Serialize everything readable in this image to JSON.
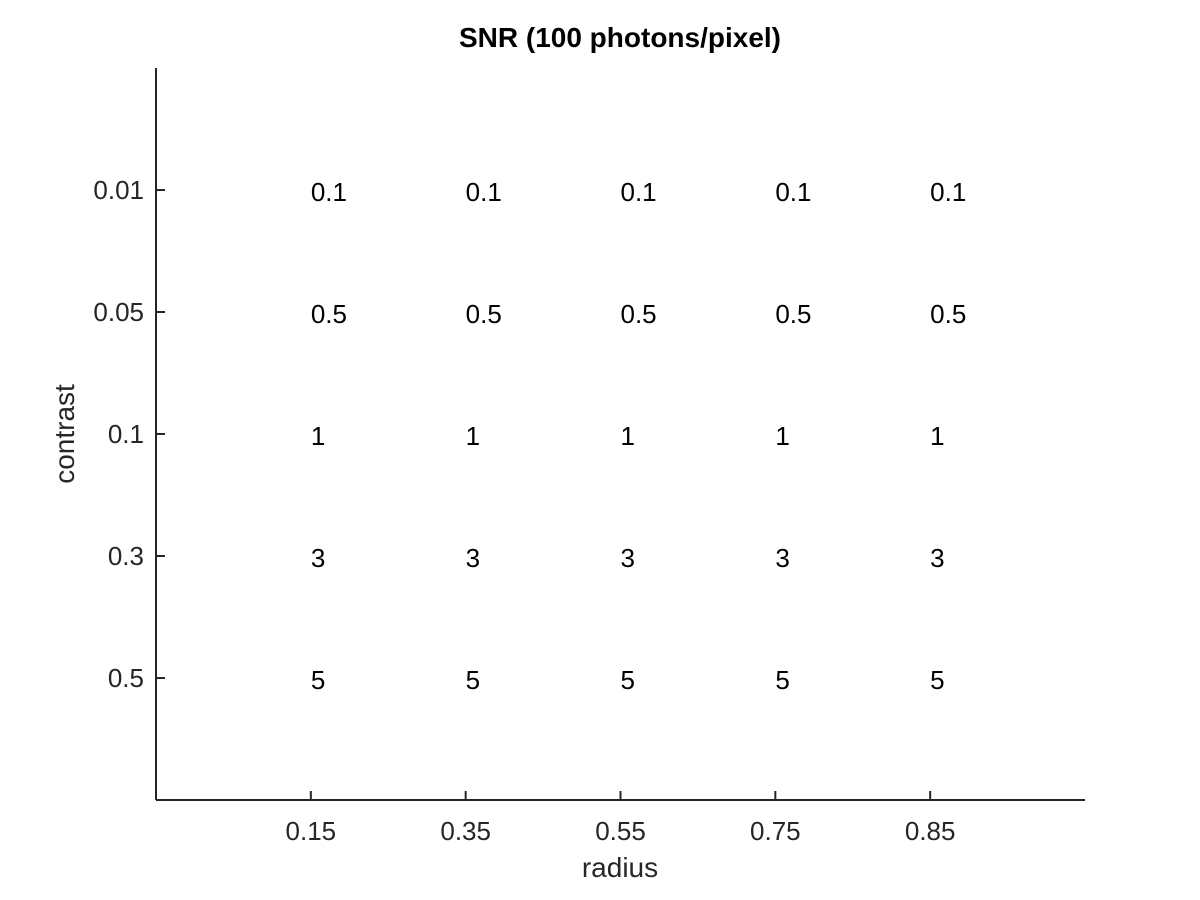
{
  "chart_data": {
    "type": "table",
    "title": "SNR (100 photons/pixel)",
    "xlabel": "radius",
    "ylabel": "contrast",
    "x": [
      "0.15",
      "0.35",
      "0.55",
      "0.75",
      "0.85"
    ],
    "y": [
      "0.01",
      "0.05",
      "0.1",
      "0.3",
      "0.5"
    ],
    "values": [
      [
        "0.1",
        "0.1",
        "0.1",
        "0.1",
        "0.1"
      ],
      [
        "0.5",
        "0.5",
        "0.5",
        "0.5",
        "0.5"
      ],
      [
        "1",
        "1",
        "1",
        "1",
        "1"
      ],
      [
        "3",
        "3",
        "3",
        "3",
        "3"
      ],
      [
        "5",
        "5",
        "5",
        "5",
        "5"
      ]
    ],
    "xlim": [
      0,
      6
    ],
    "ylim": [
      0,
      6
    ],
    "y_reversed": true,
    "grid": false,
    "box": false
  },
  "colors": {
    "axis": "#262626",
    "text": "#000000",
    "background": "#ffffff"
  }
}
